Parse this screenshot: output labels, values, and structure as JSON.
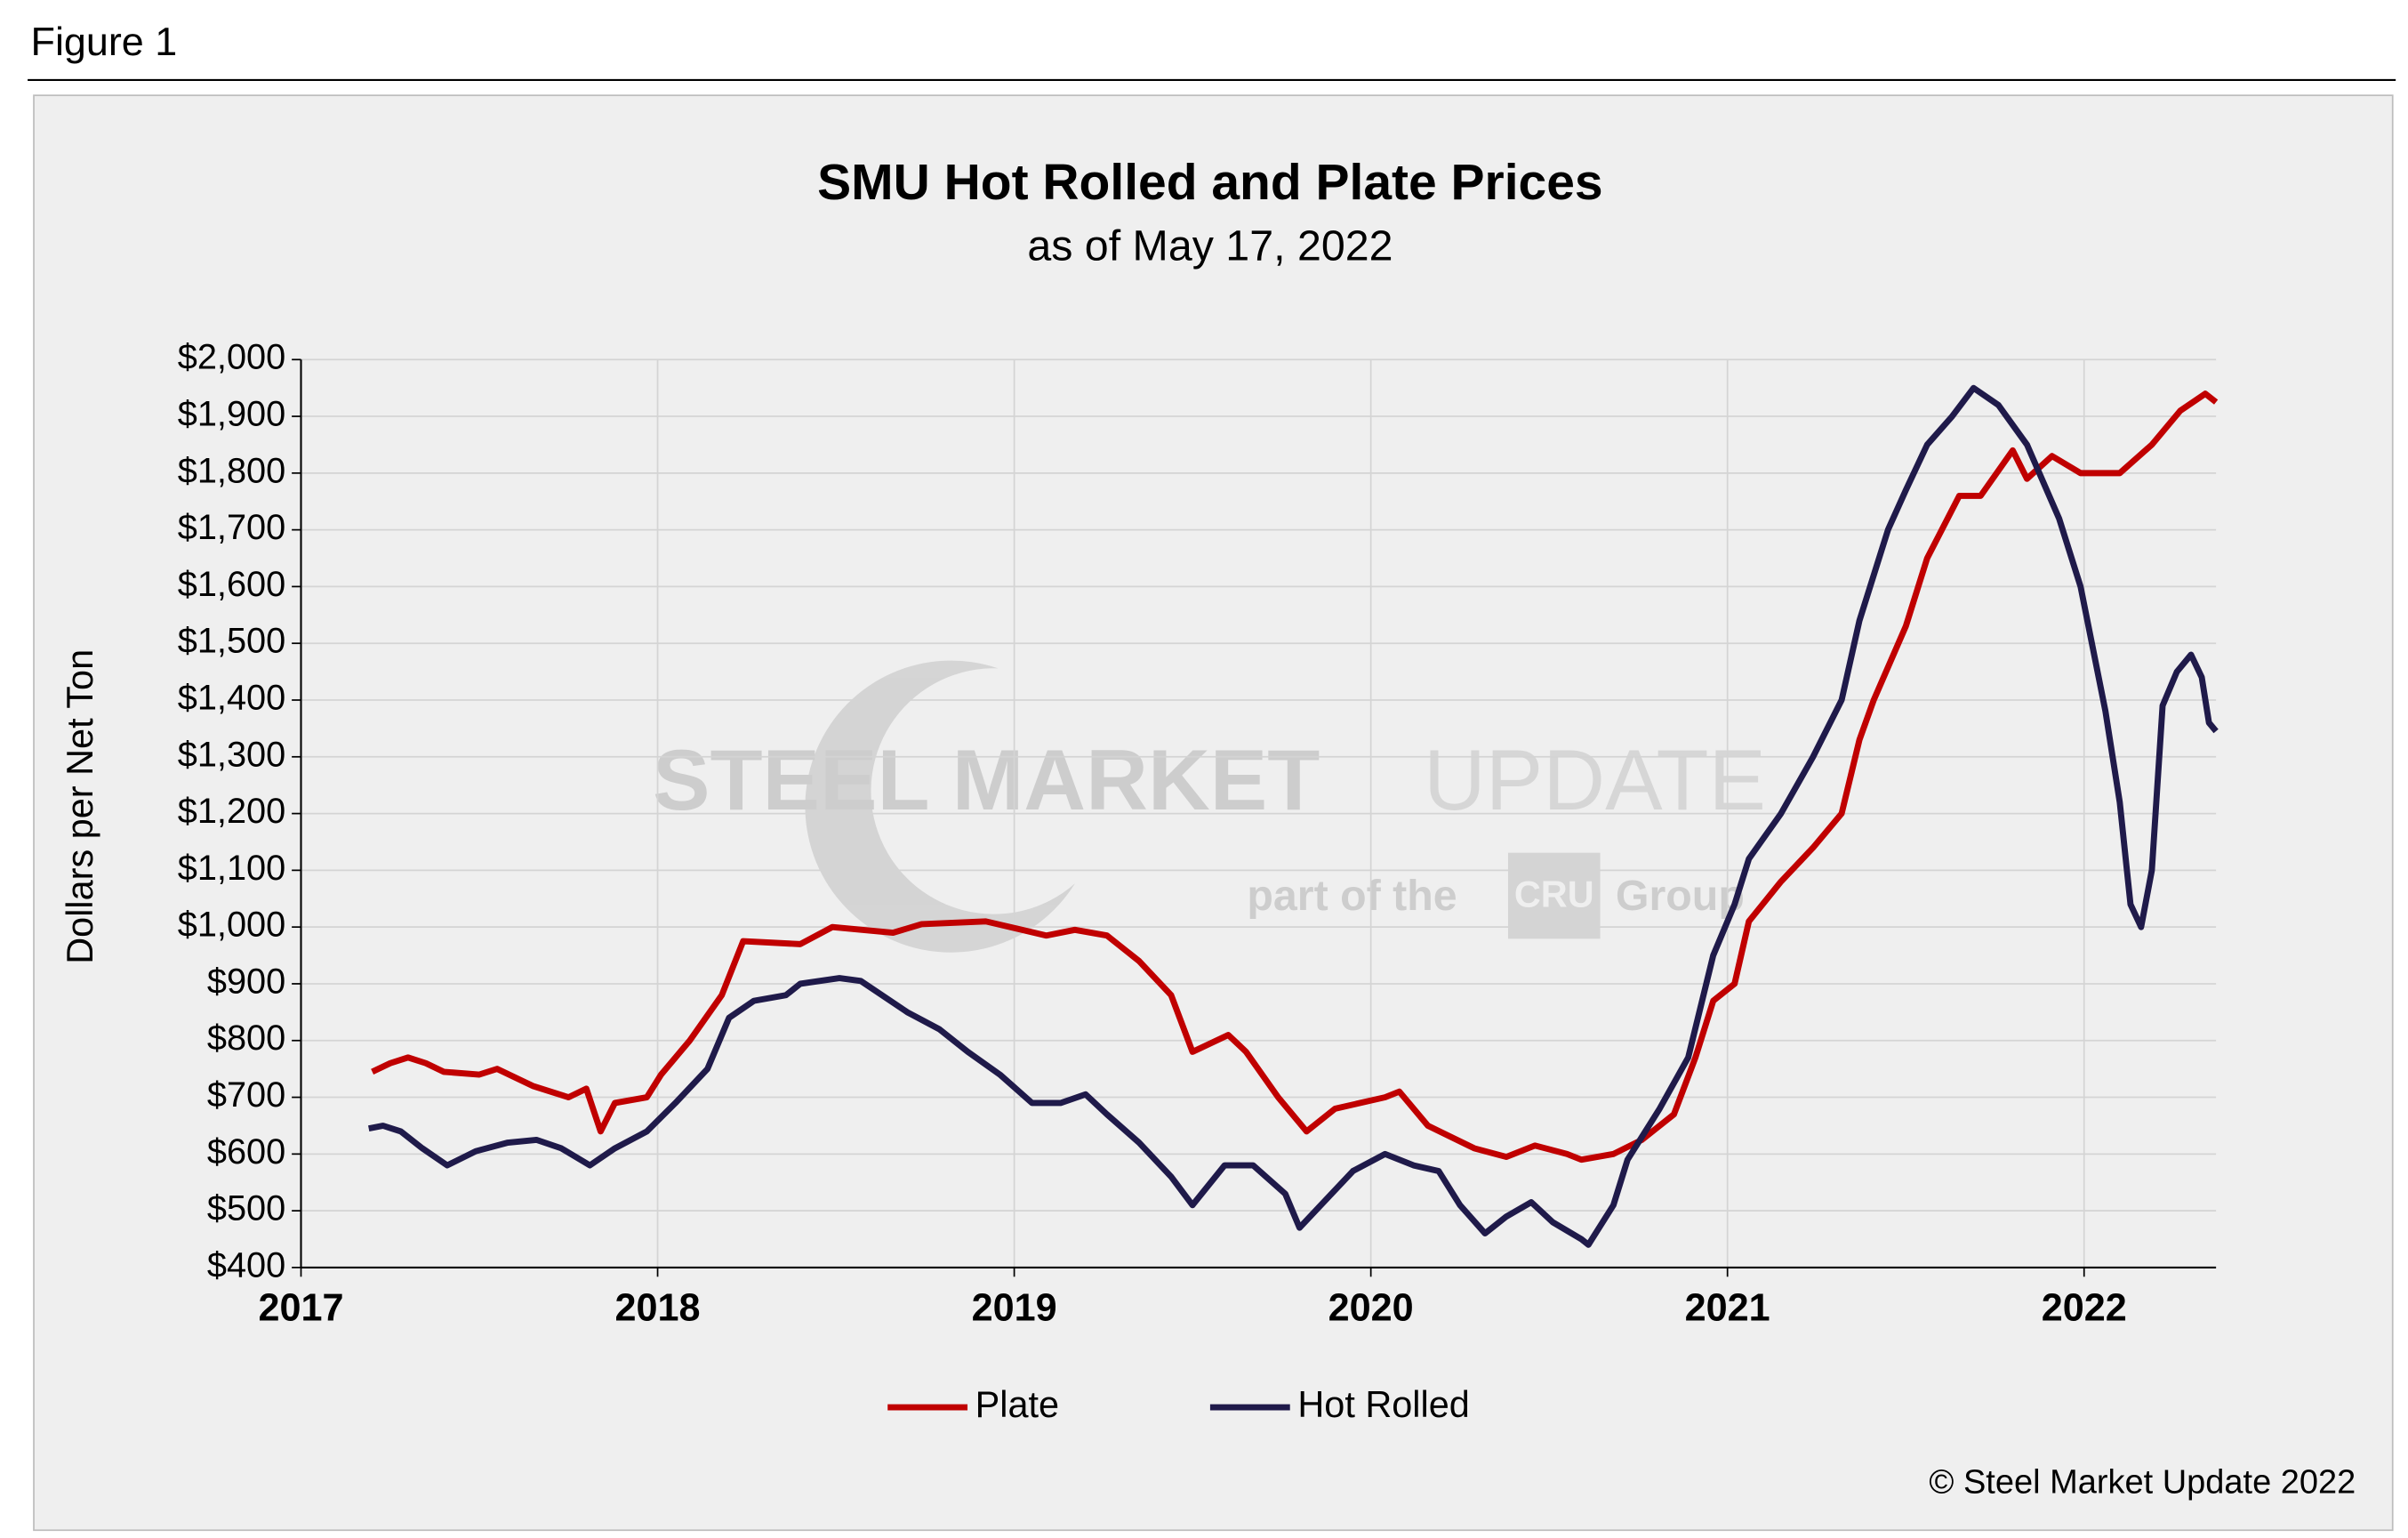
{
  "figure_label": "Figure 1",
  "copyright": "© Steel Market Update 2022",
  "watermark": {
    "main": "STEEL MARKET",
    "light": "UPDATE",
    "sub": "part of the",
    "logo": "CRU",
    "group": "Group"
  },
  "chart_data": {
    "type": "line",
    "title": "SMU Hot Rolled and Plate Prices",
    "subtitle": "as of May 17, 2022",
    "y_label": "Dollars per Net Ton",
    "xlim": [
      2017,
      2022.37
    ],
    "xticks": [
      2017,
      2018,
      2019,
      2020,
      2021,
      2022
    ],
    "ylim": [
      400,
      2000
    ],
    "yticks": [
      {
        "value": 400,
        "label": "$400"
      },
      {
        "value": 500,
        "label": "$500"
      },
      {
        "value": 600,
        "label": "$600"
      },
      {
        "value": 700,
        "label": "$700"
      },
      {
        "value": 800,
        "label": "$800"
      },
      {
        "value": 900,
        "label": "$900"
      },
      {
        "value": 1000,
        "label": "$1,000"
      },
      {
        "value": 1100,
        "label": "$1,100"
      },
      {
        "value": 1200,
        "label": "$1,200"
      },
      {
        "value": 1300,
        "label": "$1,300"
      },
      {
        "value": 1400,
        "label": "$1,400"
      },
      {
        "value": 1500,
        "label": "$1,500"
      },
      {
        "value": 1600,
        "label": "$1,600"
      },
      {
        "value": 1700,
        "label": "$1,700"
      },
      {
        "value": 1800,
        "label": "$1,800"
      },
      {
        "value": 1900,
        "label": "$1,900"
      },
      {
        "value": 2000,
        "label": "$2,000"
      }
    ],
    "grid": true,
    "legend": "bottom",
    "series": [
      {
        "name": "Plate",
        "color": "#c00000",
        "x": [
          2017.2,
          2017.25,
          2017.3,
          2017.35,
          2017.4,
          2017.5,
          2017.55,
          2017.65,
          2017.75,
          2017.8,
          2017.84,
          2017.88,
          2017.97,
          2018.01,
          2018.09,
          2018.18,
          2018.24,
          2018.4,
          2018.49,
          2018.66,
          2018.74,
          2018.92,
          2019.09,
          2019.17,
          2019.26,
          2019.35,
          2019.44,
          2019.5,
          2019.6,
          2019.65,
          2019.74,
          2019.82,
          2019.9,
          2020.04,
          2020.08,
          2020.16,
          2020.29,
          2020.38,
          2020.46,
          2020.55,
          2020.59,
          2020.68,
          2020.76,
          2020.85,
          2020.91,
          2020.96,
          2021.02,
          2021.06,
          2021.15,
          2021.24,
          2021.32,
          2021.37,
          2021.41,
          2021.5,
          2021.56,
          2021.65,
          2021.71,
          2021.8,
          2021.84,
          2021.91,
          2021.99,
          2022.1,
          2022.19,
          2022.27,
          2022.34,
          2022.37
        ],
        "values": [
          745,
          760,
          770,
          760,
          745,
          740,
          750,
          720,
          700,
          715,
          640,
          690,
          700,
          740,
          800,
          880,
          975,
          970,
          1000,
          990,
          1005,
          1010,
          985,
          995,
          985,
          940,
          880,
          780,
          810,
          780,
          700,
          640,
          680,
          700,
          710,
          650,
          610,
          595,
          615,
          600,
          590,
          600,
          625,
          670,
          770,
          870,
          900,
          1010,
          1080,
          1140,
          1200,
          1330,
          1400,
          1530,
          1650,
          1760,
          1760,
          1840,
          1790,
          1830,
          1800,
          1800,
          1850,
          1910,
          1940,
          1925
        ]
      },
      {
        "name": "Hot Rolled",
        "color": "#1f1a4a",
        "x": [
          2017.19,
          2017.23,
          2017.28,
          2017.34,
          2017.41,
          2017.49,
          2017.58,
          2017.66,
          2017.73,
          2017.81,
          2017.88,
          2017.97,
          2018.05,
          2018.14,
          2018.2,
          2018.27,
          2018.36,
          2018.4,
          2018.51,
          2018.57,
          2018.7,
          2018.79,
          2018.87,
          2018.96,
          2019.05,
          2019.13,
          2019.2,
          2019.26,
          2019.35,
          2019.44,
          2019.5,
          2019.59,
          2019.67,
          2019.76,
          2019.8,
          2019.86,
          2019.95,
          2020.04,
          2020.12,
          2020.19,
          2020.25,
          2020.32,
          2020.38,
          2020.45,
          2020.51,
          2020.59,
          2020.61,
          2020.68,
          2020.72,
          2020.81,
          2020.89,
          2020.96,
          2021.02,
          2021.06,
          2021.15,
          2021.24,
          2021.32,
          2021.37,
          2021.45,
          2021.5,
          2021.56,
          2021.63,
          2021.69,
          2021.76,
          2021.84,
          2021.93,
          2021.99,
          2022.06,
          2022.1,
          2022.13,
          2022.16,
          2022.19,
          2022.22,
          2022.26,
          2022.3,
          2022.33,
          2022.35,
          2022.37
        ],
        "values": [
          645,
          650,
          640,
          610,
          580,
          605,
          620,
          625,
          610,
          580,
          610,
          640,
          690,
          750,
          840,
          870,
          880,
          900,
          910,
          905,
          850,
          820,
          780,
          740,
          690,
          690,
          705,
          670,
          620,
          560,
          510,
          580,
          580,
          530,
          470,
          510,
          570,
          600,
          580,
          570,
          510,
          460,
          490,
          515,
          480,
          450,
          440,
          510,
          590,
          680,
          770,
          950,
          1040,
          1120,
          1200,
          1300,
          1400,
          1540,
          1700,
          1770,
          1850,
          1900,
          1950,
          1920,
          1850,
          1720,
          1600,
          1380,
          1220,
          1040,
          1000,
          1100,
          1390,
          1450,
          1480,
          1440,
          1360,
          1345
        ]
      }
    ]
  }
}
